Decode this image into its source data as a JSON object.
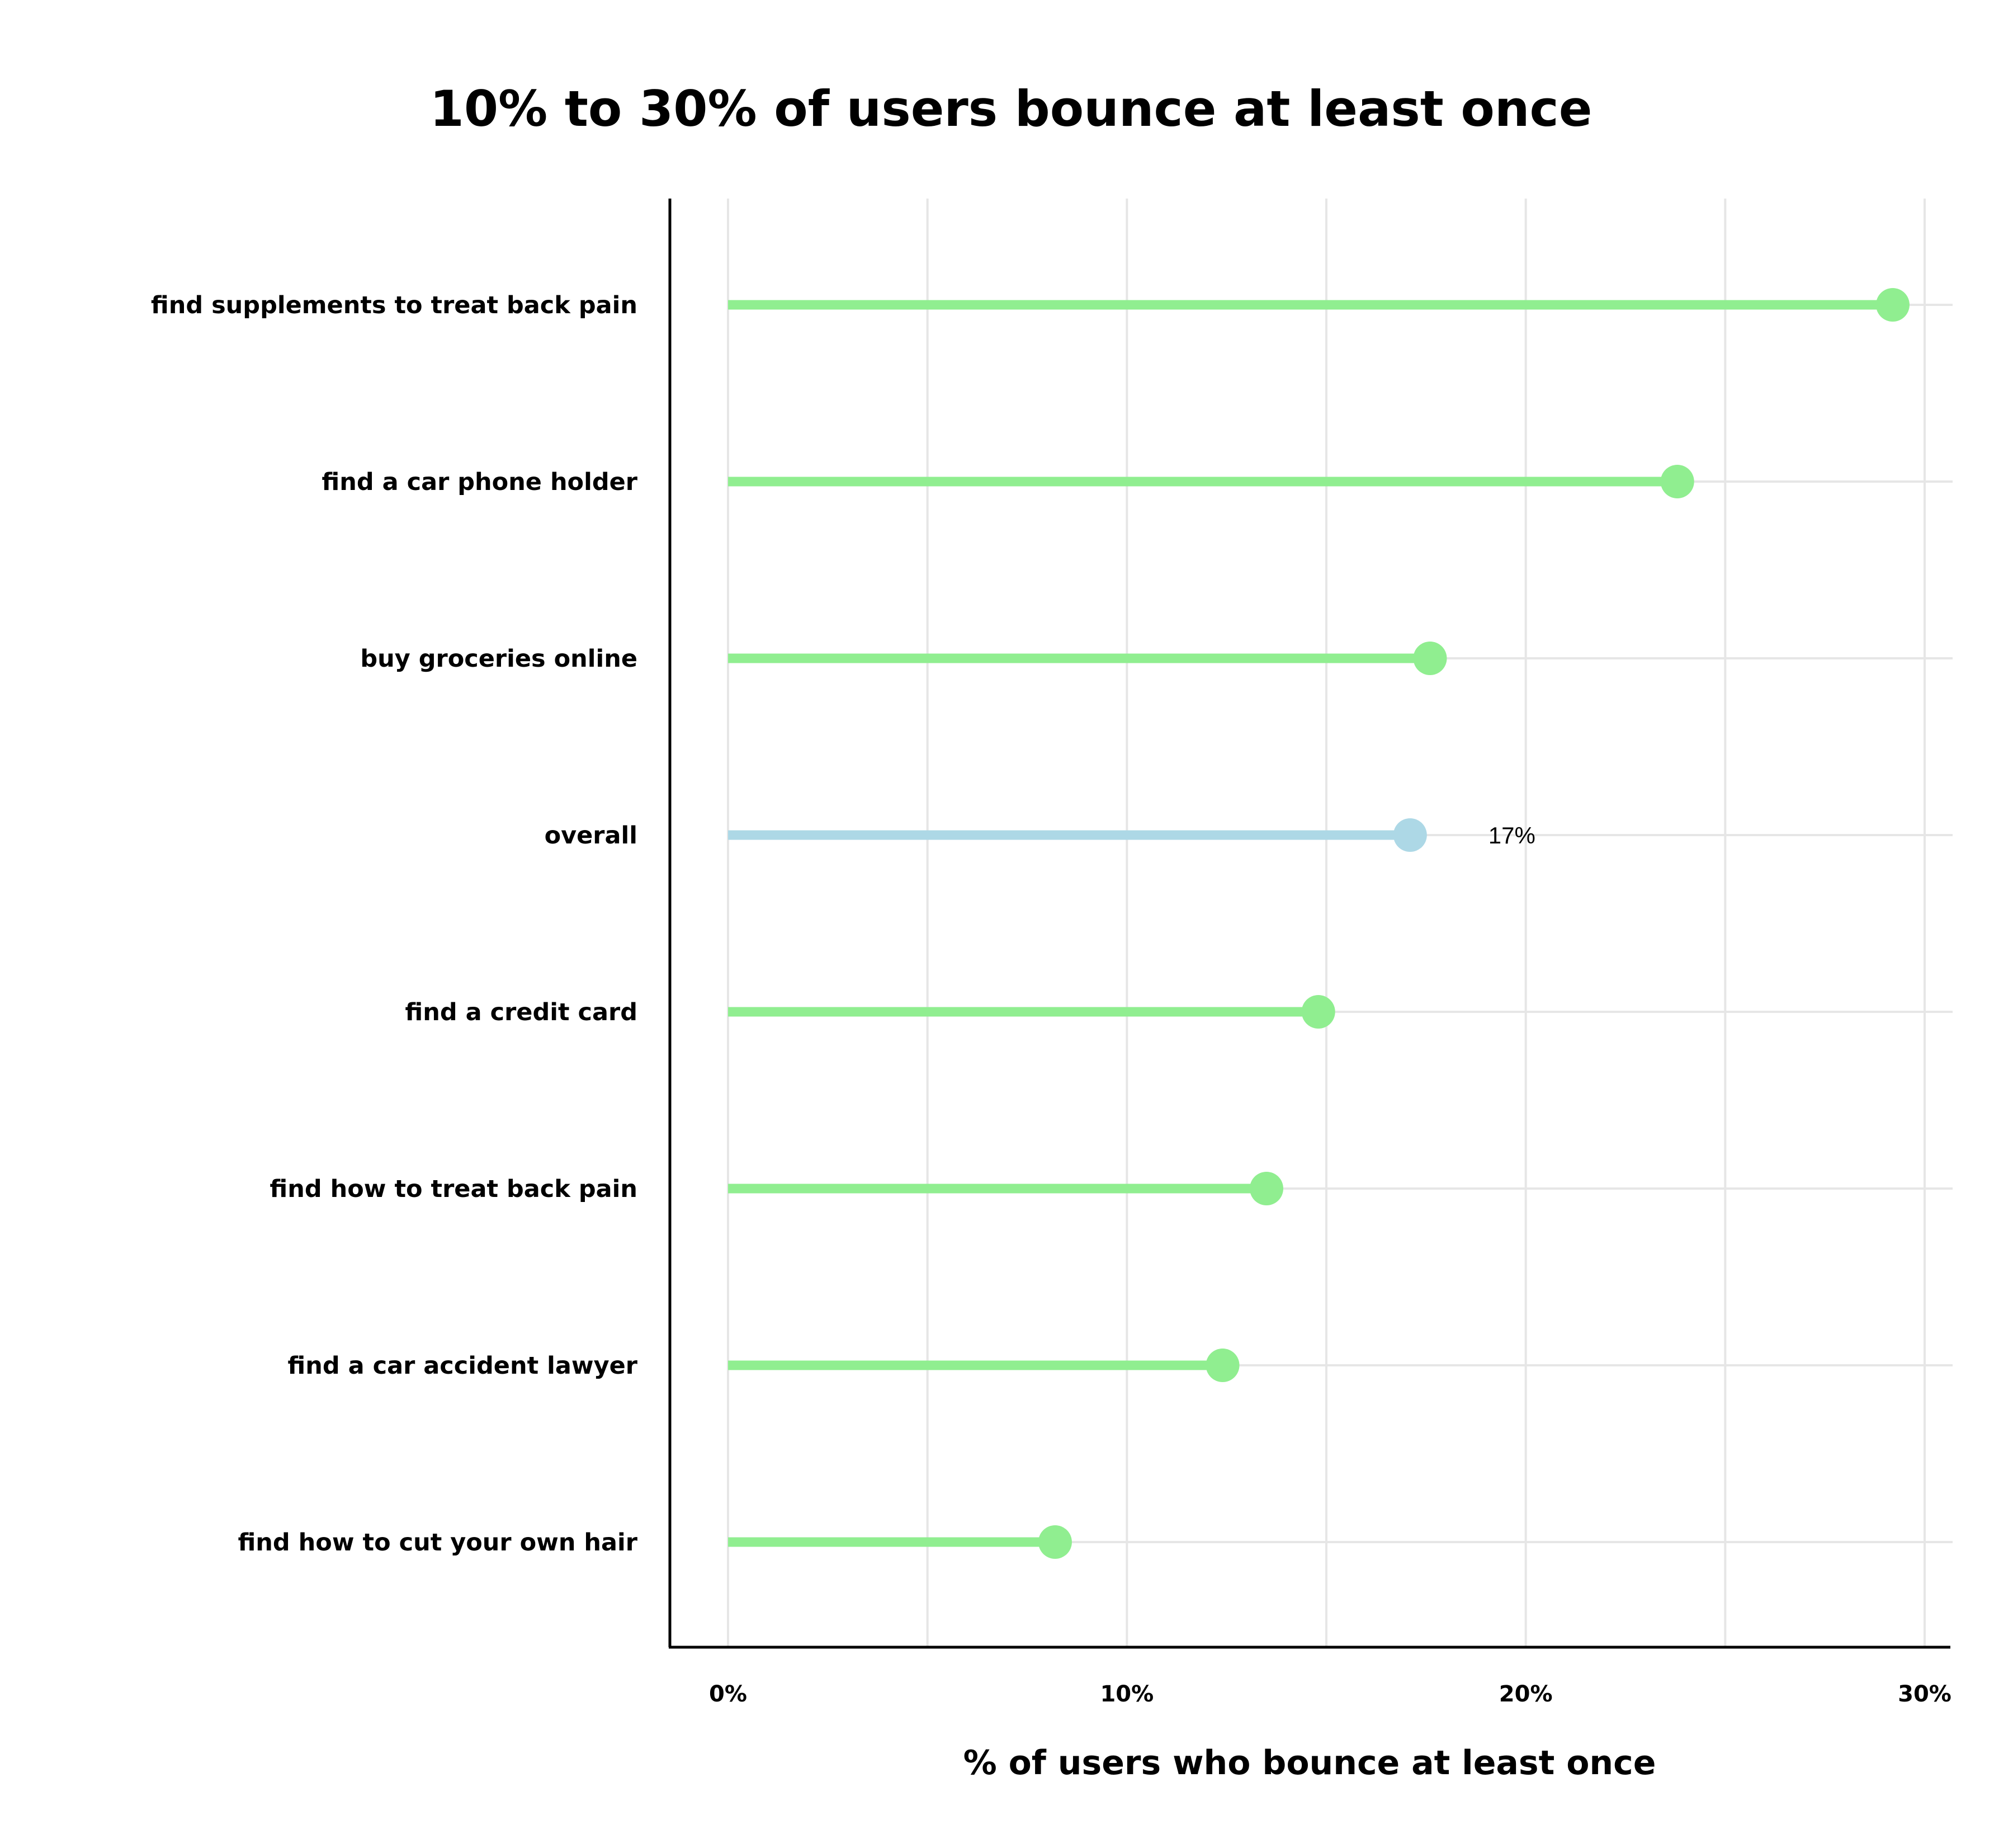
{
  "chart_data": {
    "type": "lollipop",
    "title": "10% to 30% of users bounce at least once",
    "xlabel": "% of users who bounce at least once",
    "ylabel": "",
    "xlim": [
      0,
      30
    ],
    "x_ticks": [
      {
        "value": 0,
        "label": "0%"
      },
      {
        "value": 10,
        "label": "10%"
      },
      {
        "value": 20,
        "label": "20%"
      },
      {
        "value": 30,
        "label": "30%"
      }
    ],
    "grid": true,
    "categories": [
      "find supplements to treat back pain",
      "find a car phone holder",
      "buy groceries online",
      "overall",
      "find a credit card",
      "find how to treat back pain",
      "find a car accident lawyer",
      "find how to cut your own hair"
    ],
    "values": [
      29.2,
      23.8,
      17.6,
      17.1,
      14.8,
      13.5,
      12.4,
      8.2
    ],
    "highlight": {
      "category": "overall",
      "label": "17%"
    },
    "colors": {
      "default": "#90ee90",
      "highlight": "#add8e6",
      "grid": "#e6e6e6",
      "axis": "#000000",
      "text": "#000000"
    }
  }
}
